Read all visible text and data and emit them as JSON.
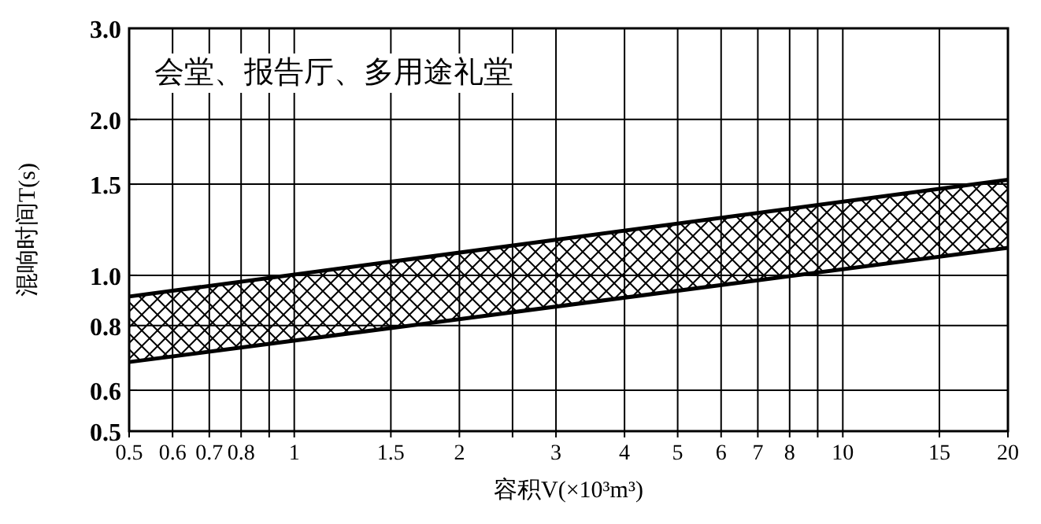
{
  "chart_data": {
    "type": "line",
    "xlabel": "容积V(×10³m³)",
    "ylabel": "混响时间T(s)",
    "annotations": [
      "会堂、报告厅、多用途礼堂"
    ],
    "x": [
      0.5,
      20
    ],
    "series": [
      {
        "color": "#000000",
        "values": [
          0.91,
          1.53
        ]
      },
      {
        "color": "#000000",
        "values": [
          0.68,
          1.13
        ]
      }
    ],
    "log": "xy",
    "xlim": [
      0.5,
      20
    ],
    "ylim": [
      0.5,
      3.0
    ],
    "xticks": [
      0.5,
      0.6,
      0.7,
      0.8,
      {
        "value": 0.9,
        "label": null
      },
      1,
      1.5,
      2,
      {
        "value": 2.5,
        "label": null
      },
      3,
      4,
      5,
      6,
      7,
      8,
      {
        "value": 9,
        "label": null
      },
      10,
      15,
      20
    ],
    "yticks": [
      0.5,
      0.6,
      0.8,
      {
        "value": 1,
        "label": "1.0"
      },
      1.5,
      {
        "value": 2,
        "label": "2.0"
      },
      {
        "value": 3,
        "label": "3.0"
      }
    ],
    "grid": true
  }
}
